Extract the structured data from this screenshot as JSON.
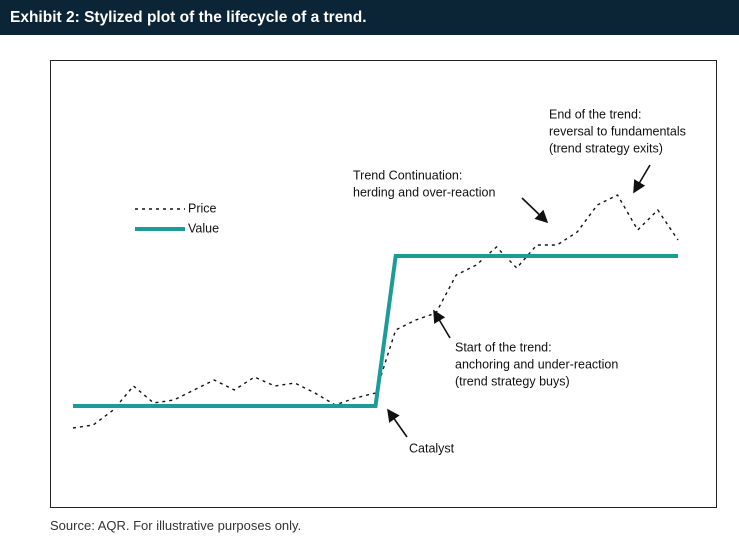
{
  "chart_data": {
    "type": "line",
    "title": "Exhibit 2: Stylized plot of the lifecycle of a trend.",
    "source": "Source: AQR. For illustrative purposes only.",
    "x": [
      0,
      1,
      2,
      3,
      4,
      5,
      6,
      7,
      8,
      9,
      10,
      11,
      12,
      13,
      14,
      15,
      16,
      17,
      18,
      19,
      20,
      21,
      22,
      23,
      24,
      25,
      26,
      27,
      28,
      29,
      30
    ],
    "series": [
      {
        "name": "Price",
        "color": "#111111",
        "dash": true,
        "values": [
          79,
          82,
          97,
          121,
          104,
          107,
          117,
          127,
          117,
          130,
          121,
          124,
          114,
          102,
          109,
          114,
          177,
          187,
          194,
          232,
          242,
          260,
          239,
          262,
          262,
          275,
          302,
          312,
          277,
          297,
          267
        ]
      },
      {
        "name": "Value",
        "color": "#1b9c98",
        "dash": false,
        "values": [
          101,
          101,
          101,
          101,
          101,
          101,
          101,
          101,
          101,
          101,
          101,
          101,
          101,
          101,
          101,
          101,
          251,
          251,
          251,
          251,
          251,
          251,
          251,
          251,
          251,
          251,
          251,
          251,
          251,
          251,
          251
        ]
      }
    ],
    "annotations": [
      {
        "lines": [
          "End of the trend:",
          "reversal to fundamentals",
          "(trend strategy exits)"
        ]
      },
      {
        "lines": [
          "Trend Continuation:",
          "herding and over-reaction"
        ]
      },
      {
        "lines": [
          "Start of the trend:",
          "anchoring and under-reaction",
          "(trend strategy buys)"
        ]
      },
      {
        "lines": [
          "Catalyst"
        ]
      }
    ]
  }
}
